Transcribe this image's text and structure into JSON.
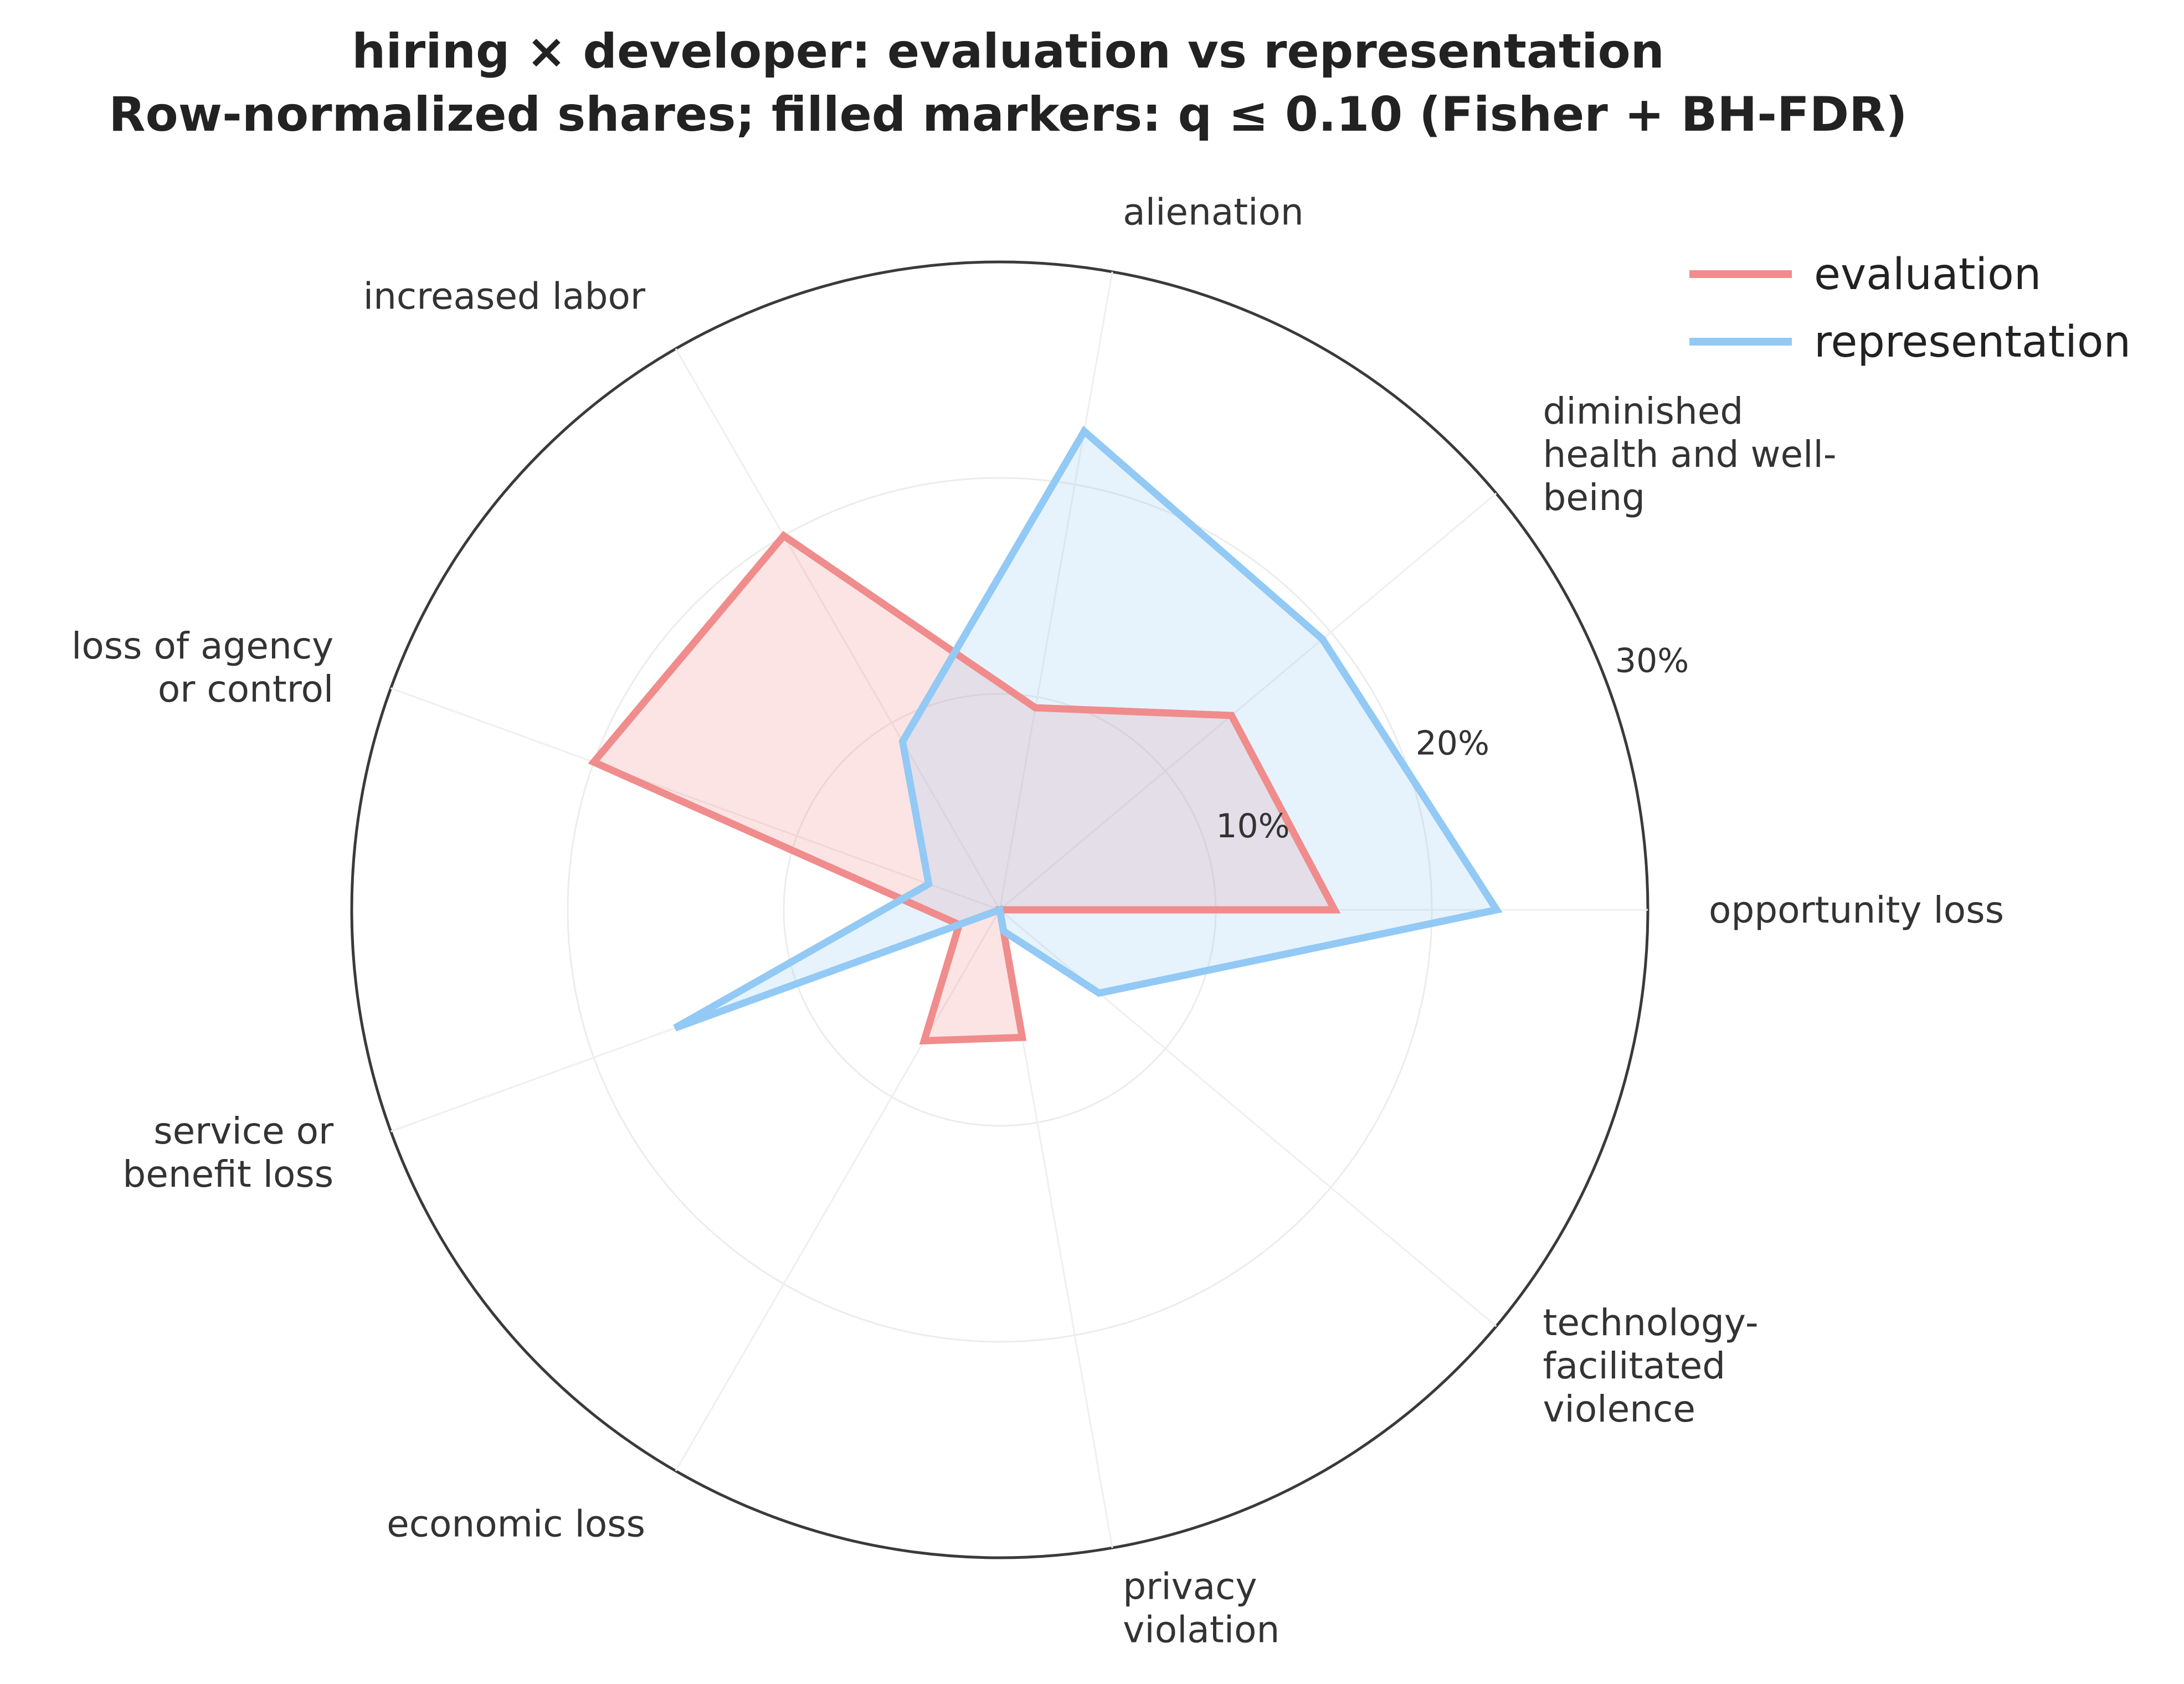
{
  "chart_data": {
    "type": "radar",
    "title_lines": [
      "hiring × developer: evaluation vs representation",
      "Row-normalized shares; filled markers: q ≤ 0.10 (Fisher + BH-FDR)"
    ],
    "categories": [
      "opportunity loss",
      "diminished health and well-being",
      "alienation",
      "increased labor",
      "loss of agency or control",
      "service or benefit loss",
      "economic loss",
      "privacy violation",
      "technology-facilitated violence"
    ],
    "category_label_lines": [
      [
        "opportunity loss"
      ],
      [
        "diminished",
        "health and well-",
        "being"
      ],
      [
        "alienation"
      ],
      [
        "increased labor"
      ],
      [
        "loss of agency",
        "or control"
      ],
      [
        "service or",
        "benefit loss"
      ],
      [
        "economic loss"
      ],
      [
        "privacy",
        "violation"
      ],
      [
        "technology-",
        "facilitated",
        "violence"
      ]
    ],
    "rlim": [
      0,
      30
    ],
    "rticks": [
      10,
      20,
      30
    ],
    "rtick_labels": [
      "10%",
      "20%",
      "30%"
    ],
    "series": [
      {
        "name": "evaluation",
        "color": "#f08c8c",
        "values": [
          15.5,
          14.0,
          9.5,
          20.0,
          20.0,
          2.0,
          7.0,
          6.0,
          0.0
        ]
      },
      {
        "name": "representation",
        "color": "#92c9f5",
        "values": [
          23.0,
          19.5,
          22.5,
          9.0,
          3.5,
          16.0,
          0.0,
          1.0,
          6.0
        ]
      }
    ],
    "legend_position": "top-right",
    "grid": true
  }
}
